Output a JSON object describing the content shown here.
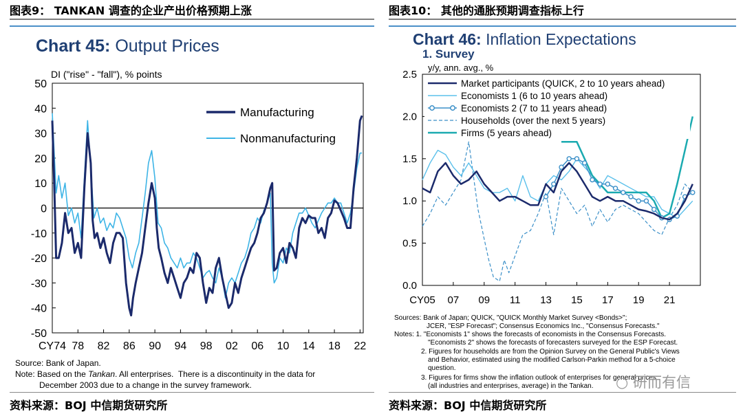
{
  "left_caption": "图表9： TANKAN 调查的企业产出价格预期上涨",
  "right_caption": "图表10： 其他的通胀预期调查指标上行",
  "left_source": "资料来源：BOJ 中信期货研究所",
  "right_source": "资料来源：BOJ 中信期货研究所",
  "watermark": "研而有信",
  "colors": {
    "dark_navy": "#1b2a6b",
    "light_blue": "#3db4e6",
    "teal": "#1aaab0",
    "title_blue": "#1f3f73"
  },
  "left_notes": {
    "source": "Source: Bank of Japan.",
    "note_prefix": "Note: Based on the ",
    "note_italic": "Tankan",
    "note_rest": ". All enterprises.  There is a discontinuity in the data for",
    "note2": "December 2003 due to a change in the survey framework."
  },
  "right_notes": {
    "sources1": "Sources: Bank of Japan; QUICK, \"QUICK Monthly Market Survey <Bonds>\";",
    "sources2": "JCER, \"ESP Forecast\"; Consensus Economics Inc., \"Consensus Forecasts.\"",
    "n1a": "Notes: 1. \"Economists 1\" shows the forecasts of economists in the Consensus Forecasts.",
    "n1b": "\"Economists 2\" shows the forecasts of forecasters surveyed for the ESP Forecast.",
    "n2a": "2. Figures for households are from the Opinion Survey on the General Public's Views",
    "n2b": "and Behavior, estimated using the modified Carlson-Parkin method for a 5-choice",
    "n2c": "question.",
    "n3a": "3. Figures for firms show the inflation outlook of enterprises for general prices",
    "n3b": "(all industries and enterprises, average) in the Tankan."
  },
  "chart_data": [
    {
      "type": "line",
      "title_bold": "Chart 45:",
      "title_rest": " Output Prices",
      "ylabel": "DI (\"rise\" - \"fall\"), % points",
      "xlabel": "",
      "x_range": [
        1974,
        2022.5
      ],
      "ylim": [
        -50,
        50
      ],
      "y_ticks": [
        50,
        40,
        30,
        20,
        10,
        0,
        -10,
        -20,
        -30,
        -40,
        -50
      ],
      "x_tick_labels": [
        {
          "x": 1974,
          "label": "CY74"
        },
        {
          "x": 1978,
          "label": "78"
        },
        {
          "x": 1982,
          "label": "82"
        },
        {
          "x": 1986,
          "label": "86"
        },
        {
          "x": 1990,
          "label": "90"
        },
        {
          "x": 1994,
          "label": "94"
        },
        {
          "x": 1998,
          "label": "98"
        },
        {
          "x": 2002,
          "label": "02"
        },
        {
          "x": 2006,
          "label": "06"
        },
        {
          "x": 2010,
          "label": "10"
        },
        {
          "x": 2014,
          "label": "14"
        },
        {
          "x": 2018,
          "label": "18"
        },
        {
          "x": 2022,
          "label": "22"
        }
      ],
      "legend": [
        "Manufacturing",
        "Nonmanufacturing"
      ],
      "series": [
        {
          "name": "Manufacturing",
          "color": "#1b2a6b",
          "x": [
            1974,
            1974.3,
            1974.6,
            1975,
            1975.5,
            1976,
            1976.5,
            1977,
            1977.5,
            1978,
            1978.5,
            1979,
            1979.5,
            1980,
            1980.3,
            1980.6,
            1981,
            1981.5,
            1982,
            1982.5,
            1983,
            1983.5,
            1984,
            1984.5,
            1985,
            1985.5,
            1986,
            1986.3,
            1986.6,
            1987,
            1987.5,
            1988,
            1988.5,
            1989,
            1989.5,
            1990,
            1990.3,
            1990.6,
            1991,
            1991.5,
            1992,
            1992.5,
            1993,
            1993.5,
            1994,
            1994.5,
            1995,
            1995.5,
            1996,
            1996.5,
            1997,
            1997.5,
            1998,
            1998.5,
            1999,
            1999.5,
            2000,
            2000.5,
            2001,
            2001.5,
            2002,
            2002.5,
            2003,
            2003.5,
            2004,
            2004.5,
            2005,
            2005.5,
            2006,
            2006.5,
            2007,
            2007.5,
            2008,
            2008.3,
            2008.6,
            2009,
            2009.5,
            2010,
            2010.5,
            2011,
            2011.5,
            2012,
            2012.5,
            2013,
            2013.5,
            2014,
            2014.5,
            2015,
            2015.5,
            2016,
            2016.5,
            2017,
            2017.5,
            2018,
            2018.5,
            2019,
            2019.5,
            2020,
            2020.5,
            2021,
            2021.5,
            2022,
            2022.3
          ],
          "y": [
            35,
            10,
            -20,
            -20,
            -14,
            -2,
            -10,
            -8,
            -18,
            -14,
            -20,
            8,
            30,
            18,
            -5,
            -12,
            -10,
            -16,
            -12,
            -18,
            -22,
            -14,
            -10,
            -10,
            -12,
            -30,
            -40,
            -43,
            -36,
            -30,
            -24,
            -18,
            -8,
            2,
            10,
            4,
            -8,
            -16,
            -20,
            -26,
            -30,
            -24,
            -28,
            -32,
            -36,
            -30,
            -28,
            -24,
            -26,
            -18,
            -20,
            -30,
            -38,
            -32,
            -34,
            -24,
            -20,
            -28,
            -34,
            -40,
            -38,
            -30,
            -34,
            -28,
            -24,
            -20,
            -16,
            -14,
            -10,
            -4,
            -2,
            2,
            8,
            10,
            -25,
            -24,
            -18,
            -16,
            -22,
            -14,
            -16,
            -20,
            -8,
            -4,
            -6,
            -3,
            -4,
            -4,
            -10,
            -8,
            -12,
            -4,
            -2,
            3,
            2,
            -1,
            -4,
            -8,
            -8,
            8,
            20,
            35,
            37
          ]
        },
        {
          "name": "Nonmanufacturing",
          "color": "#3db4e6",
          "x": [
            1974,
            1974.3,
            1974.6,
            1975,
            1975.5,
            1976,
            1976.5,
            1977,
            1977.5,
            1978,
            1978.5,
            1979,
            1979.5,
            1980,
            1980.5,
            1981,
            1981.5,
            1982,
            1982.5,
            1983,
            1983.5,
            1984,
            1984.5,
            1985,
            1985.5,
            1986,
            1986.5,
            1987,
            1987.5,
            1988,
            1988.5,
            1989,
            1989.5,
            1990,
            1990.5,
            1991,
            1991.5,
            1992,
            1992.5,
            1993,
            1993.5,
            1994,
            1994.5,
            1995,
            1995.5,
            1996,
            1996.5,
            1997,
            1997.5,
            1998,
            1998.5,
            1999,
            1999.5,
            2000,
            2000.5,
            2001,
            2001.5,
            2002,
            2002.5,
            2003,
            2003.5,
            2004,
            2004.5,
            2005,
            2005.5,
            2006,
            2006.5,
            2007,
            2007.5,
            2008,
            2008.3,
            2008.6,
            2009,
            2009.5,
            2010,
            2010.5,
            2011,
            2011.5,
            2012,
            2012.5,
            2013,
            2013.5,
            2014,
            2014.5,
            2015,
            2015.5,
            2016,
            2016.5,
            2017,
            2017.5,
            2018,
            2018.5,
            2019,
            2019.5,
            2020,
            2020.5,
            2021,
            2021.5,
            2022,
            2022.3
          ],
          "y": [
            38,
            22,
            6,
            13,
            4,
            10,
            -3,
            0,
            -6,
            -2,
            -12,
            12,
            35,
            16,
            -4,
            0,
            -6,
            -4,
            -9,
            -6,
            -8,
            -2,
            -4,
            -8,
            -12,
            -20,
            -24,
            -18,
            -14,
            -4,
            6,
            18,
            23,
            12,
            -6,
            -8,
            -14,
            -16,
            -20,
            -22,
            -24,
            -20,
            -24,
            -22,
            -22,
            -18,
            -20,
            -24,
            -28,
            -26,
            -25,
            -28,
            -30,
            -24,
            -28,
            -36,
            -30,
            -28,
            -30,
            -26,
            -22,
            -20,
            -16,
            -10,
            -8,
            -4,
            -6,
            -1,
            2,
            6,
            -22,
            -30,
            -28,
            -20,
            -22,
            -16,
            -18,
            -10,
            -6,
            -2,
            -2,
            0,
            -3,
            -6,
            -8,
            -5,
            -2,
            0,
            2,
            2,
            4,
            2,
            2,
            -2,
            -6,
            -2,
            6,
            16,
            22,
            22
          ]
        }
      ]
    },
    {
      "type": "line",
      "title_bold": "Chart 46:",
      "title_rest": " Inflation Expectations",
      "subtitle": "1. Survey",
      "ylabel": "y/y, ann. avg., %",
      "xlabel": "",
      "x_range": [
        2005,
        2023
      ],
      "ylim": [
        0.0,
        2.5
      ],
      "y_ticks": [
        0.0,
        0.5,
        1.0,
        1.5,
        2.0,
        2.5
      ],
      "y_tick_labels": [
        "0.0",
        "0.5",
        "1.0",
        "1.5",
        "2.0",
        "2.5"
      ],
      "x_tick_labels": [
        {
          "x": 2005,
          "label": "CY05"
        },
        {
          "x": 2007,
          "label": "07"
        },
        {
          "x": 2009,
          "label": "09"
        },
        {
          "x": 2011,
          "label": "11"
        },
        {
          "x": 2013,
          "label": "13"
        },
        {
          "x": 2015,
          "label": "15"
        },
        {
          "x": 2017,
          "label": "17"
        },
        {
          "x": 2019,
          "label": "19"
        },
        {
          "x": 2021,
          "label": "21"
        }
      ],
      "legend": [
        "Market participants (QUICK, 2 to 10 years ahead)",
        "Economists 1 (6 to 10 years ahead)",
        "Economists 2 (7 to 11 years ahead)",
        "Households (over the next 5 years)",
        "Firms (5 years ahead)"
      ],
      "series": [
        {
          "name": "Market participants (QUICK, 2 to 10 years ahead)",
          "color": "#1b2a6b",
          "x": [
            2005,
            2005.5,
            2006,
            2006.5,
            2007,
            2007.5,
            2008,
            2008.5,
            2009,
            2009.5,
            2010,
            2010.5,
            2011,
            2011.5,
            2012,
            2012.5,
            2013,
            2013.5,
            2014,
            2014.5,
            2015,
            2015.5,
            2016,
            2016.5,
            2017,
            2017.5,
            2018,
            2018.5,
            2019,
            2019.5,
            2020,
            2020.5,
            2021,
            2021.5,
            2022,
            2022.5
          ],
          "y": [
            1.15,
            1.1,
            1.35,
            1.45,
            1.3,
            1.2,
            1.25,
            1.35,
            1.2,
            1.1,
            1.0,
            1.05,
            1.05,
            1.0,
            0.95,
            0.95,
            1.2,
            1.1,
            1.35,
            1.45,
            1.35,
            1.2,
            1.05,
            1.0,
            1.05,
            1.0,
            1.0,
            0.95,
            0.9,
            0.88,
            0.85,
            0.8,
            0.78,
            0.85,
            1.0,
            1.2
          ]
        },
        {
          "name": "Economists 1 (6 to 10 years ahead)",
          "color": "#5bc0eb",
          "x": [
            2005,
            2005.5,
            2006,
            2006.5,
            2007,
            2007.5,
            2008,
            2008.5,
            2009,
            2009.5,
            2010,
            2010.5,
            2011,
            2011.5,
            2012,
            2012.5,
            2013,
            2013.5,
            2014,
            2014.5,
            2015,
            2015.5,
            2016,
            2016.5,
            2017,
            2017.5,
            2018,
            2018.5,
            2019,
            2019.5,
            2020,
            2020.5,
            2021,
            2021.5,
            2022,
            2022.5
          ],
          "y": [
            1.25,
            1.45,
            1.6,
            1.55,
            1.4,
            1.3,
            1.45,
            1.3,
            1.15,
            1.1,
            1.1,
            1.15,
            1.0,
            1.3,
            1.05,
            1.0,
            1.2,
            1.3,
            1.25,
            1.35,
            1.5,
            1.4,
            1.3,
            1.15,
            1.3,
            1.25,
            1.2,
            1.15,
            1.1,
            1.05,
            1.05,
            0.9,
            0.85,
            0.8,
            0.9,
            1.0
          ]
        },
        {
          "name": "Economists 2 (7 to 11 years ahead)",
          "color": "#3a8fc8",
          "marker": "circle",
          "x": [
            2013,
            2013.5,
            2014,
            2014.5,
            2015,
            2015.5,
            2016,
            2016.5,
            2017,
            2017.5,
            2018,
            2018.5,
            2019,
            2019.5,
            2020,
            2020.5,
            2021,
            2021.5,
            2022,
            2022.5
          ],
          "y": [
            1.05,
            1.2,
            1.4,
            1.5,
            1.5,
            1.45,
            1.25,
            1.2,
            1.2,
            1.15,
            1.1,
            1.05,
            1.0,
            1.0,
            0.9,
            0.8,
            0.78,
            0.82,
            1.05,
            1.1
          ]
        },
        {
          "name": "Households (over the next 5 years)",
          "color": "#3a8fc8",
          "dash": "5,3",
          "x": [
            2005,
            2005.5,
            2006,
            2006.5,
            2007,
            2007.5,
            2008,
            2008.3,
            2008.6,
            2009,
            2009.3,
            2009.6,
            2010,
            2010.3,
            2010.6,
            2011,
            2011.5,
            2012,
            2012.5,
            2013,
            2013.5,
            2014,
            2014.5,
            2015,
            2015.5,
            2016,
            2016.5,
            2017,
            2017.5,
            2018,
            2018.5,
            2019,
            2019.5,
            2020,
            2020.5,
            2021,
            2021.5,
            2022,
            2022.5
          ],
          "y": [
            0.7,
            0.85,
            1.05,
            0.95,
            1.1,
            1.25,
            1.7,
            1.3,
            0.9,
            0.55,
            0.3,
            0.1,
            0.05,
            0.3,
            0.15,
            0.35,
            0.6,
            0.65,
            0.85,
            1.1,
            0.6,
            1.15,
            1.0,
            0.85,
            0.95,
            0.7,
            0.9,
            0.75,
            0.9,
            0.95,
            0.9,
            0.85,
            0.75,
            0.65,
            0.6,
            0.8,
            0.95,
            1.2,
            1.1
          ]
        },
        {
          "name": "Firms (5 years ahead)",
          "color": "#1aaab0",
          "x": [
            2014,
            2014.5,
            2015,
            2015.5,
            2016,
            2016.5,
            2017,
            2017.5,
            2018,
            2018.5,
            2019,
            2019.5,
            2020,
            2020.5,
            2021,
            2021.5,
            2022,
            2022.5
          ],
          "y": [
            1.7,
            1.7,
            1.7,
            1.5,
            1.3,
            1.2,
            1.1,
            1.1,
            1.1,
            1.1,
            1.1,
            1.1,
            1.0,
            0.8,
            0.85,
            1.2,
            1.6,
            2.0
          ]
        }
      ]
    }
  ]
}
